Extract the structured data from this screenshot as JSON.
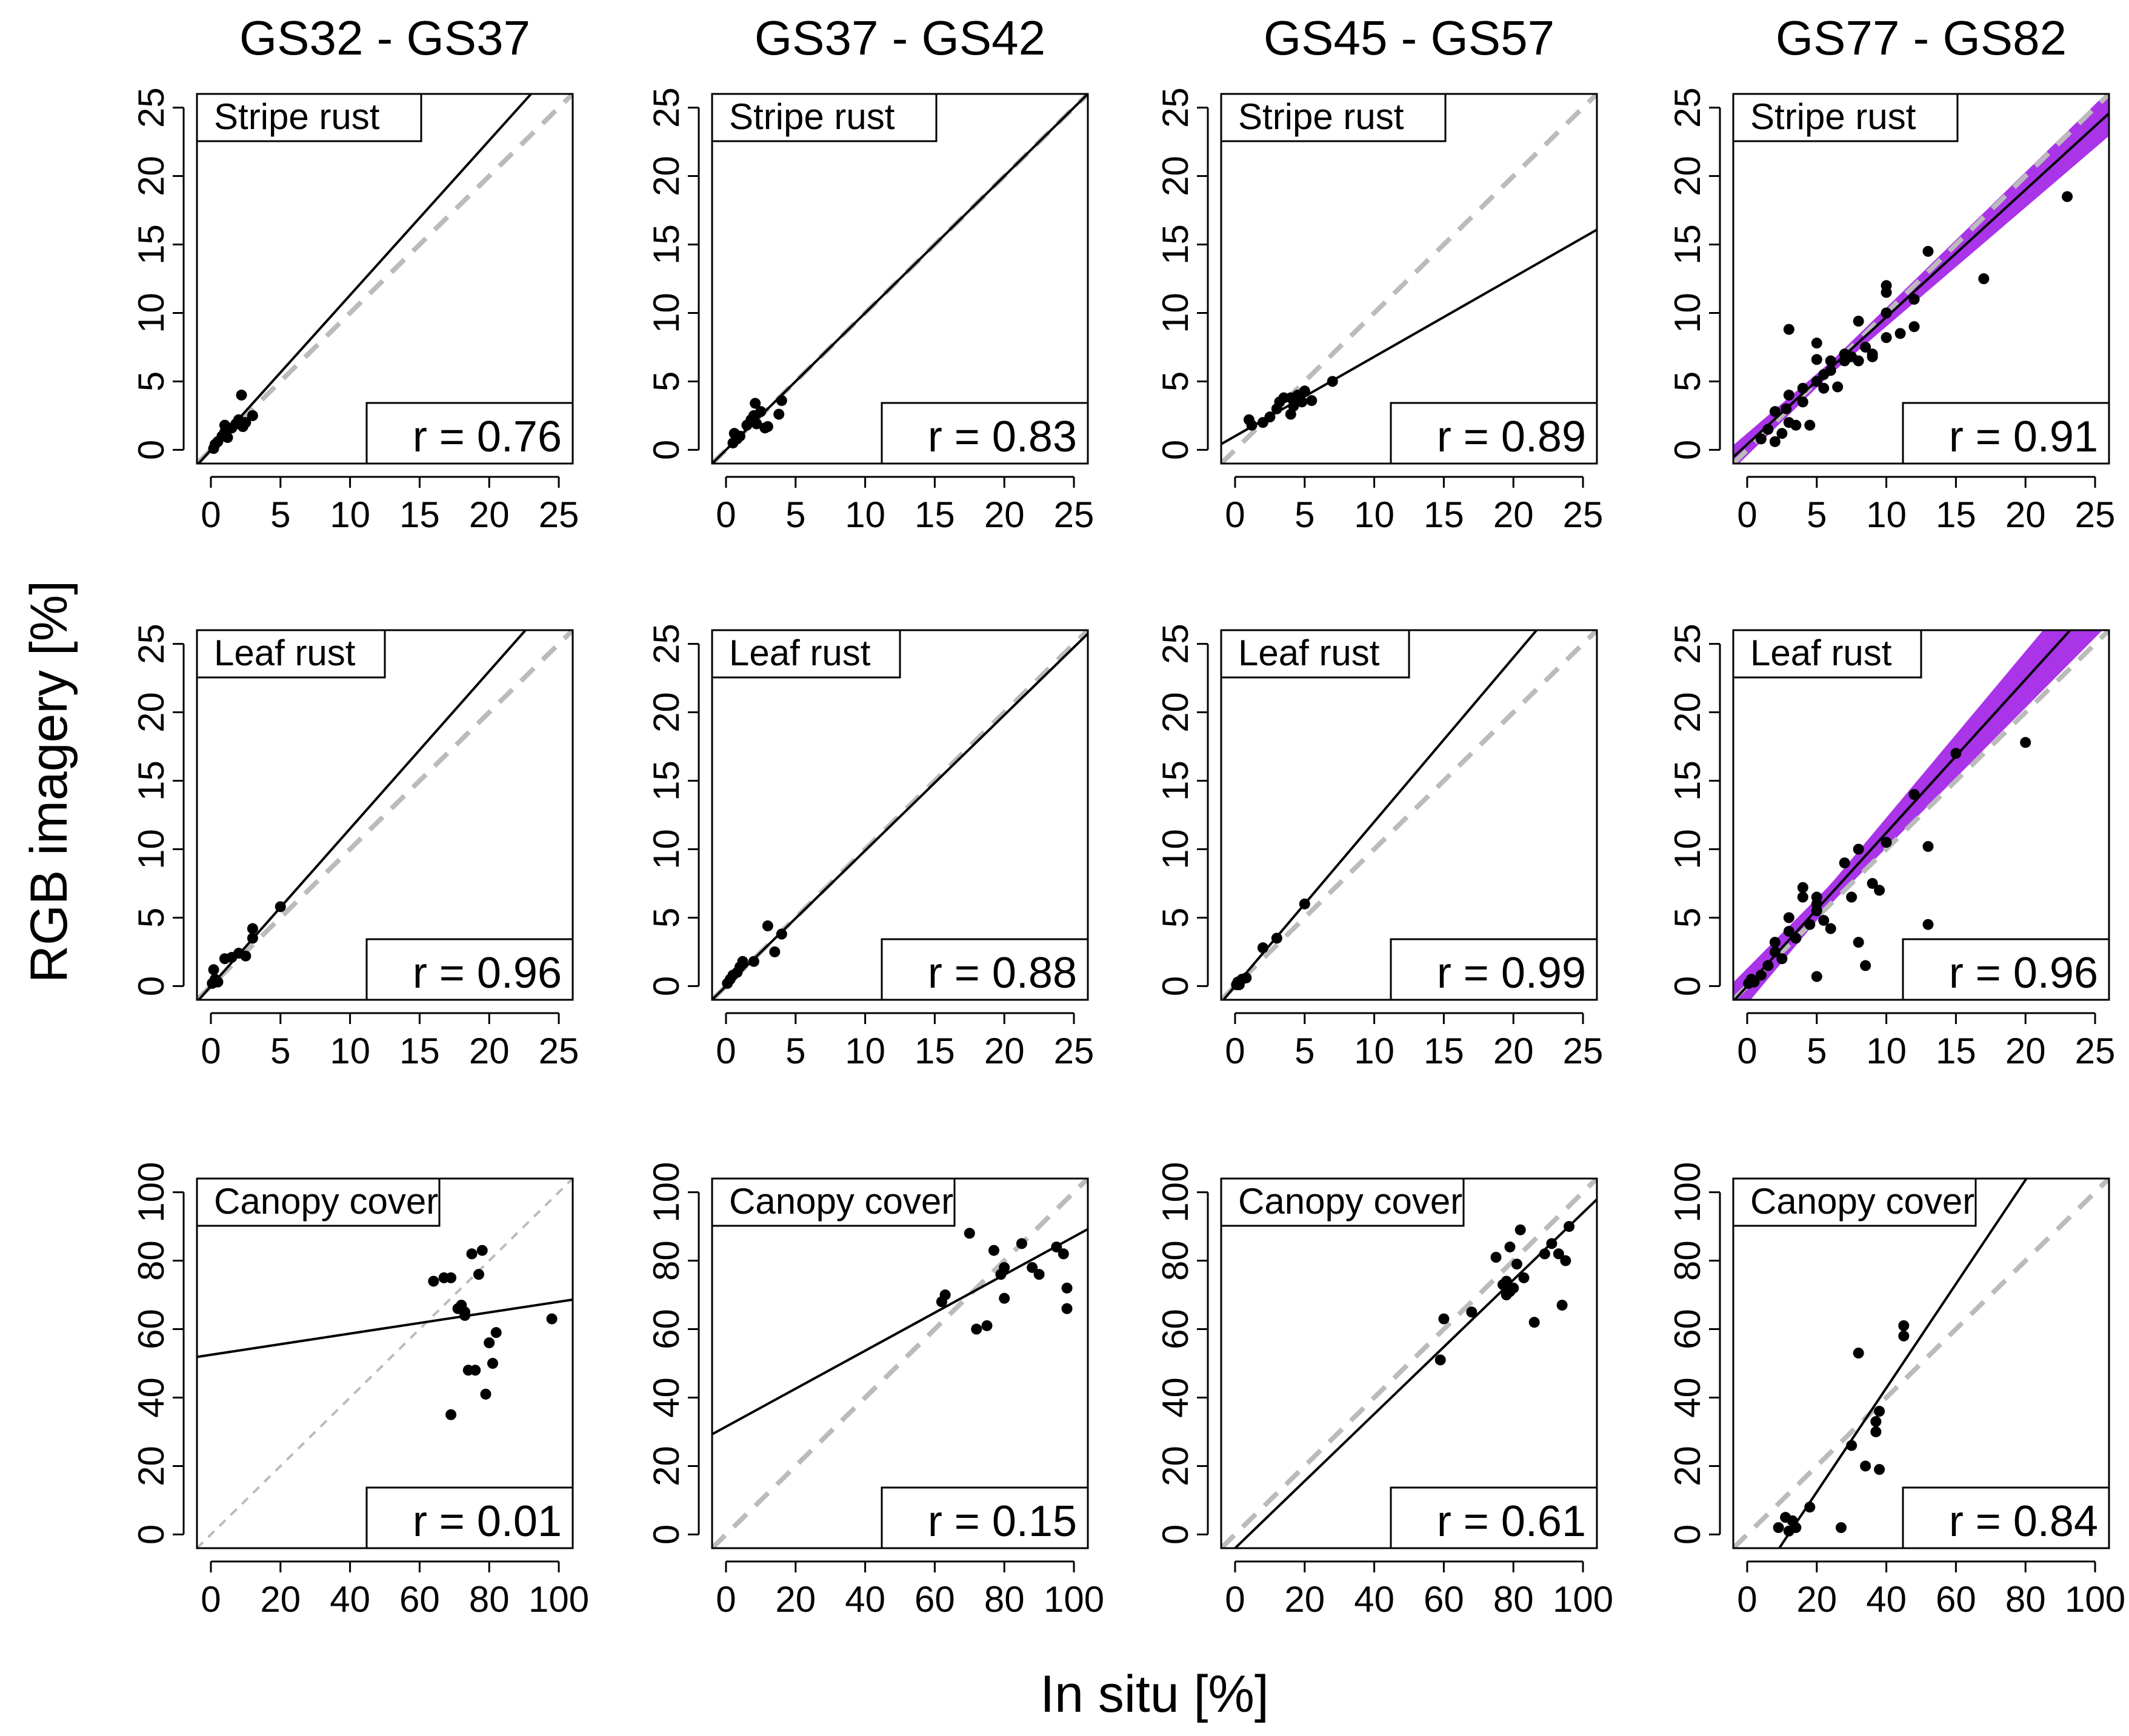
{
  "figure": {
    "ylabel": "RGB imagery [%]",
    "xlabel": "In situ [%]",
    "columns": [
      "GS32 - GS37",
      "GS37 - GS42",
      "GS45 - GS57",
      "GS77 - GS82"
    ],
    "rows": [
      "Stripe rust",
      "Leaf rust",
      "Canopy cover"
    ]
  },
  "colors": {
    "points": "#000000",
    "fit_line": "#000000",
    "identity_line": "#bbbbbb",
    "confidence_band": "#a01ee6"
  },
  "chart_data": [
    {
      "type": "scatter",
      "row": 0,
      "col": 0,
      "title": "Stripe rust",
      "stage": "GS32 - GS37",
      "r_label": "r = 0.76",
      "xlim": [
        0,
        25
      ],
      "ylim": [
        0,
        25
      ],
      "ticks": [
        0,
        5,
        10,
        15,
        20,
        25
      ],
      "xlabel": "In situ [%]",
      "ylabel": "RGB imagery [%]",
      "fit": {
        "slope": 1.13,
        "intercept": 0.0
      },
      "band": false,
      "identity_style": "dashed-thick",
      "points": [
        [
          0.2,
          0.1
        ],
        [
          0.3,
          0.4
        ],
        [
          0.5,
          0.6
        ],
        [
          0.8,
          1.0
        ],
        [
          1.0,
          1.3
        ],
        [
          1.0,
          1.8
        ],
        [
          1.2,
          0.9
        ],
        [
          1.5,
          1.6
        ],
        [
          1.8,
          1.9
        ],
        [
          2.0,
          2.2
        ],
        [
          2.2,
          4.0
        ],
        [
          2.3,
          1.7
        ],
        [
          2.5,
          2.0
        ],
        [
          3.0,
          2.5
        ]
      ]
    },
    {
      "type": "scatter",
      "row": 0,
      "col": 1,
      "title": "Stripe rust",
      "stage": "GS37 - GS42",
      "r_label": "r = 0.83",
      "xlim": [
        0,
        25
      ],
      "ylim": [
        0,
        25
      ],
      "ticks": [
        0,
        5,
        10,
        15,
        20,
        25
      ],
      "xlabel": "In situ [%]",
      "ylabel": "RGB imagery [%]",
      "fit": {
        "slope": 1.0,
        "intercept": 0.0
      },
      "band": false,
      "identity_style": "dashed-thick",
      "points": [
        [
          0.5,
          0.5
        ],
        [
          0.6,
          1.2
        ],
        [
          0.8,
          0.8
        ],
        [
          1.0,
          1.0
        ],
        [
          1.5,
          1.8
        ],
        [
          1.8,
          2.2
        ],
        [
          2.0,
          2.5
        ],
        [
          2.1,
          3.4
        ],
        [
          2.2,
          1.9
        ],
        [
          2.5,
          2.8
        ],
        [
          2.8,
          1.6
        ],
        [
          3.0,
          1.7
        ],
        [
          3.8,
          2.6
        ],
        [
          4.0,
          3.6
        ]
      ]
    },
    {
      "type": "scatter",
      "row": 0,
      "col": 2,
      "title": "Stripe rust",
      "stage": "GS45 - GS57",
      "r_label": "r = 0.89",
      "xlim": [
        0,
        25
      ],
      "ylim": [
        0,
        25
      ],
      "ticks": [
        0,
        5,
        10,
        15,
        20,
        25
      ],
      "xlabel": "In situ [%]",
      "ylabel": "RGB imagery [%]",
      "fit": {
        "slope": 0.58,
        "intercept": 1.0
      },
      "band": false,
      "identity_style": "dashed-thick",
      "points": [
        [
          1.0,
          2.2
        ],
        [
          1.2,
          1.8
        ],
        [
          2.0,
          2.0
        ],
        [
          2.5,
          2.4
        ],
        [
          3.0,
          3.0
        ],
        [
          3.2,
          3.5
        ],
        [
          3.5,
          3.8
        ],
        [
          4.0,
          2.6
        ],
        [
          4.0,
          3.8
        ],
        [
          4.2,
          3.2
        ],
        [
          4.5,
          4.0
        ],
        [
          4.8,
          3.5
        ],
        [
          5.0,
          4.3
        ],
        [
          5.5,
          3.6
        ],
        [
          7.0,
          5.0
        ]
      ]
    },
    {
      "type": "scatter",
      "row": 0,
      "col": 3,
      "title": "Stripe rust",
      "stage": "GS77 - GS82",
      "r_label": "r = 0.91",
      "xlim": [
        0,
        25
      ],
      "ylim": [
        0,
        25
      ],
      "ticks": [
        0,
        5,
        10,
        15,
        20,
        25
      ],
      "xlabel": "In situ [%]",
      "ylabel": "RGB imagery [%]",
      "fit": {
        "slope": 0.93,
        "intercept": 0.4
      },
      "band": true,
      "identity_style": "dashed-thick",
      "points": [
        [
          1,
          0.8
        ],
        [
          1.5,
          1.5
        ],
        [
          2,
          2.8
        ],
        [
          2,
          0.6
        ],
        [
          2.5,
          1.2
        ],
        [
          2.8,
          3.0
        ],
        [
          3,
          4.0
        ],
        [
          3,
          8.8
        ],
        [
          3,
          2.0
        ],
        [
          3.5,
          1.8
        ],
        [
          4,
          3.5
        ],
        [
          4,
          4.5
        ],
        [
          4.5,
          1.8
        ],
        [
          5,
          5.0
        ],
        [
          5,
          6.6
        ],
        [
          5,
          7.8
        ],
        [
          5.5,
          4.5
        ],
        [
          5.5,
          5.5
        ],
        [
          6,
          5.8
        ],
        [
          6,
          6.5
        ],
        [
          6.5,
          4.6
        ],
        [
          7,
          7.0
        ],
        [
          7,
          6.5
        ],
        [
          7.5,
          6.8
        ],
        [
          8,
          9.4
        ],
        [
          8,
          6.5
        ],
        [
          8.5,
          7.5
        ],
        [
          9,
          7.0
        ],
        [
          9,
          6.8
        ],
        [
          10,
          12.0
        ],
        [
          10,
          11.5
        ],
        [
          10,
          10.0
        ],
        [
          10,
          8.2
        ],
        [
          11,
          8.5
        ],
        [
          12,
          11.0
        ],
        [
          12,
          9.0
        ],
        [
          13,
          14.5
        ],
        [
          17,
          12.5
        ],
        [
          23,
          18.5
        ]
      ]
    },
    {
      "type": "scatter",
      "row": 1,
      "col": 0,
      "title": "Leaf rust",
      "stage": "GS32 - GS37",
      "r_label": "r = 0.96",
      "xlim": [
        0,
        25
      ],
      "ylim": [
        0,
        25
      ],
      "ticks": [
        0,
        5,
        10,
        15,
        20,
        25
      ],
      "xlabel": "In situ [%]",
      "ylabel": "RGB imagery [%]",
      "fit": {
        "slope": 1.15,
        "intercept": 0.0
      },
      "band": false,
      "identity_style": "dashed-thick",
      "points": [
        [
          0.1,
          0.2
        ],
        [
          0.2,
          1.2
        ],
        [
          0.3,
          0.5
        ],
        [
          0.5,
          0.3
        ],
        [
          1.0,
          2.0
        ],
        [
          1.5,
          2.1
        ],
        [
          2.0,
          2.4
        ],
        [
          2.5,
          2.2
        ],
        [
          3.0,
          3.5
        ],
        [
          3.0,
          4.2
        ],
        [
          5.0,
          5.8
        ]
      ]
    },
    {
      "type": "scatter",
      "row": 1,
      "col": 1,
      "title": "Leaf rust",
      "stage": "GS37 - GS42",
      "r_label": "r = 0.88",
      "xlim": [
        0,
        25
      ],
      "ylim": [
        0,
        25
      ],
      "ticks": [
        0,
        5,
        10,
        15,
        20,
        25
      ],
      "xlabel": "In situ [%]",
      "ylabel": "RGB imagery [%]",
      "fit": {
        "slope": 0.99,
        "intercept": 0.0
      },
      "band": false,
      "identity_style": "dashed-thick",
      "points": [
        [
          0.1,
          0.2
        ],
        [
          0.3,
          0.5
        ],
        [
          0.5,
          0.8
        ],
        [
          0.8,
          1.0
        ],
        [
          1.0,
          1.4
        ],
        [
          1.2,
          1.8
        ],
        [
          2.0,
          1.8
        ],
        [
          3.0,
          4.4
        ],
        [
          3.5,
          2.5
        ],
        [
          4.0,
          3.8
        ]
      ]
    },
    {
      "type": "scatter",
      "row": 1,
      "col": 2,
      "title": "Leaf rust",
      "stage": "GS45 - GS57",
      "r_label": "r = 0.99",
      "xlim": [
        0,
        25
      ],
      "ylim": [
        0,
        25
      ],
      "ticks": [
        0,
        5,
        10,
        15,
        20,
        25
      ],
      "xlabel": "In situ [%]",
      "ylabel": "RGB imagery [%]",
      "fit": {
        "slope": 1.2,
        "intercept": 0.0
      },
      "band": false,
      "identity_style": "dashed-thick",
      "points": [
        [
          0.1,
          0.1
        ],
        [
          0.2,
          0.3
        ],
        [
          0.3,
          0.1
        ],
        [
          0.5,
          0.5
        ],
        [
          0.8,
          0.6
        ],
        [
          2.0,
          2.8
        ],
        [
          3.0,
          3.5
        ],
        [
          5.0,
          6.0
        ]
      ]
    },
    {
      "type": "scatter",
      "row": 1,
      "col": 3,
      "title": "Leaf rust",
      "stage": "GS77 - GS82",
      "r_label": "r = 0.96",
      "xlim": [
        0,
        25
      ],
      "ylim": [
        0,
        25
      ],
      "ticks": [
        0,
        5,
        10,
        15,
        20,
        25
      ],
      "xlabel": "In situ [%]",
      "ylabel": "RGB imagery [%]",
      "fit": {
        "slope": 1.12,
        "intercept": 0.0
      },
      "band": true,
      "identity_style": "dashed-thick",
      "points": [
        [
          0.1,
          0.2
        ],
        [
          0.3,
          0.5
        ],
        [
          0.5,
          0.3
        ],
        [
          1,
          0.8
        ],
        [
          1.5,
          1.5
        ],
        [
          2,
          2.5
        ],
        [
          2,
          3.2
        ],
        [
          2.5,
          2.0
        ],
        [
          3,
          5.0
        ],
        [
          3,
          4.0
        ],
        [
          3.5,
          3.5
        ],
        [
          4,
          7.2
        ],
        [
          4,
          6.5
        ],
        [
          4.5,
          4.5
        ],
        [
          5,
          6.5
        ],
        [
          5,
          6.0
        ],
        [
          5,
          5.5
        ],
        [
          5,
          0.7
        ],
        [
          5.5,
          4.8
        ],
        [
          6,
          4.2
        ],
        [
          7,
          9.0
        ],
        [
          7.5,
          6.5
        ],
        [
          8,
          10.0
        ],
        [
          8,
          3.2
        ],
        [
          8.5,
          1.5
        ],
        [
          9,
          7.5
        ],
        [
          9.5,
          7.0
        ],
        [
          10,
          10.5
        ],
        [
          12,
          14.0
        ],
        [
          13,
          10.2
        ],
        [
          13,
          4.5
        ],
        [
          15,
          17.0
        ],
        [
          20,
          17.8
        ]
      ]
    },
    {
      "type": "scatter",
      "row": 2,
      "col": 0,
      "title": "Canopy cover",
      "stage": "GS32 - GS37",
      "r_label": "r = 0.01",
      "xlim": [
        0,
        100
      ],
      "ylim": [
        0,
        100
      ],
      "ticks": [
        0,
        20,
        40,
        60,
        80,
        100
      ],
      "xlabel": "In situ [%]",
      "ylabel": "RGB imagery [%]",
      "fit": {
        "slope": 0.155,
        "intercept": 52.5
      },
      "band": false,
      "identity_style": "dashed-thin",
      "points": [
        [
          64,
          74
        ],
        [
          67,
          75
        ],
        [
          69,
          75
        ],
        [
          71,
          66
        ],
        [
          72,
          67
        ],
        [
          73,
          64
        ],
        [
          73,
          65
        ],
        [
          74,
          48
        ],
        [
          75,
          82
        ],
        [
          76,
          48
        ],
        [
          77,
          76
        ],
        [
          78,
          83
        ],
        [
          79,
          41
        ],
        [
          80,
          56
        ],
        [
          81,
          50
        ],
        [
          82,
          59
        ],
        [
          69,
          35
        ],
        [
          98,
          63
        ]
      ]
    },
    {
      "type": "scatter",
      "row": 2,
      "col": 1,
      "title": "Canopy cover",
      "stage": "GS37 - GS42",
      "r_label": "r = 0.15",
      "xlim": [
        0,
        100
      ],
      "ylim": [
        0,
        100
      ],
      "ticks": [
        0,
        20,
        40,
        60,
        80,
        100
      ],
      "xlabel": "In situ [%]",
      "ylabel": "RGB imagery [%]",
      "fit": {
        "slope": 0.555,
        "intercept": 31.5
      },
      "band": false,
      "identity_style": "dashed-thick",
      "points": [
        [
          62,
          68
        ],
        [
          63,
          70
        ],
        [
          70,
          88
        ],
        [
          72,
          60
        ],
        [
          75,
          61
        ],
        [
          77,
          83
        ],
        [
          79,
          76
        ],
        [
          80,
          78
        ],
        [
          80,
          69
        ],
        [
          85,
          85
        ],
        [
          88,
          78
        ],
        [
          90,
          76
        ],
        [
          95,
          84
        ],
        [
          97,
          82
        ],
        [
          98,
          72
        ],
        [
          98,
          66
        ]
      ]
    },
    {
      "type": "scatter",
      "row": 2,
      "col": 2,
      "title": "Canopy cover",
      "stage": "GS45 - GS57",
      "r_label": "r = 0.61",
      "xlim": [
        0,
        100
      ],
      "ylim": [
        0,
        100
      ],
      "ticks": [
        0,
        20,
        40,
        60,
        80,
        100
      ],
      "xlabel": "In situ [%]",
      "ylabel": "RGB imagery [%]",
      "fit": {
        "slope": 0.98,
        "intercept": -4.0
      },
      "band": false,
      "identity_style": "dashed-thick",
      "points": [
        [
          59,
          51
        ],
        [
          60,
          63
        ],
        [
          68,
          65
        ],
        [
          75,
          81
        ],
        [
          77,
          73
        ],
        [
          78,
          74
        ],
        [
          78,
          70
        ],
        [
          79,
          71
        ],
        [
          79,
          84
        ],
        [
          80,
          72
        ],
        [
          81,
          79
        ],
        [
          82,
          89
        ],
        [
          83,
          75
        ],
        [
          86,
          62
        ],
        [
          89,
          82
        ],
        [
          91,
          85
        ],
        [
          93,
          82
        ],
        [
          94,
          67
        ],
        [
          95,
          80
        ],
        [
          96,
          90
        ]
      ]
    },
    {
      "type": "scatter",
      "row": 2,
      "col": 3,
      "title": "Canopy cover",
      "stage": "GS77 - GS82",
      "r_label": "r = 0.84",
      "xlim": [
        0,
        100
      ],
      "ylim": [
        0,
        100
      ],
      "ticks": [
        0,
        20,
        40,
        60,
        80,
        100
      ],
      "xlabel": "In situ [%]",
      "ylabel": "RGB imagery [%]",
      "fit": {
        "slope": 1.52,
        "intercept": -18.0
      },
      "band": false,
      "identity_style": "dashed-thick",
      "points": [
        [
          9,
          2
        ],
        [
          11,
          5
        ],
        [
          12,
          1
        ],
        [
          13,
          4
        ],
        [
          14,
          2
        ],
        [
          18,
          8
        ],
        [
          27,
          2
        ],
        [
          30,
          26
        ],
        [
          32,
          53
        ],
        [
          34,
          20
        ],
        [
          37,
          30
        ],
        [
          37,
          33
        ],
        [
          38,
          36
        ],
        [
          38,
          19
        ],
        [
          45,
          58
        ],
        [
          45,
          61
        ]
      ]
    }
  ]
}
